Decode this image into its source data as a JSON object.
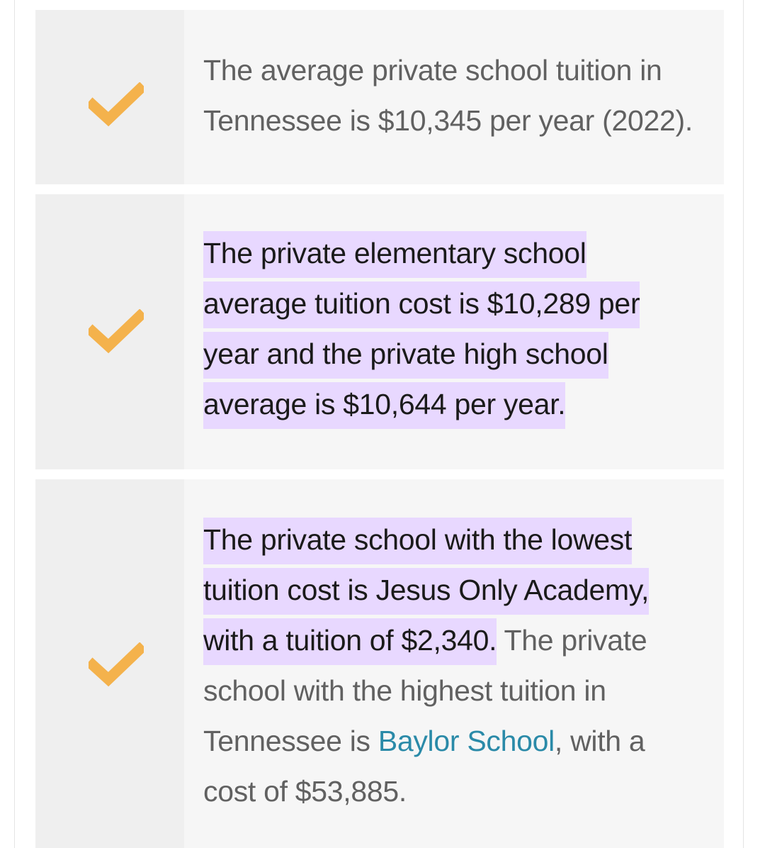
{
  "colors": {
    "check": "#f4b24c",
    "highlight": "#e8d8ff",
    "link": "#2a8aa8",
    "text": "#616161"
  },
  "items": [
    {
      "icon": "checkmark-icon",
      "text": "The average private school tuition in Tennessee is $10,345 per year (2022)."
    },
    {
      "icon": "checkmark-icon",
      "highlighted_text": "The private elementary school average tuition cost is $10,289 per year and the private high school average is $10,644 per year."
    },
    {
      "icon": "checkmark-icon",
      "highlighted_text": "The private school with the lowest tuition cost is Jesus Only Academy, with a tuition of $2,340.",
      "text_before_link": " The private school with the highest tuition in Tennessee is ",
      "link_text": "Baylor School",
      "text_after_link": ", with a cost of $53,885."
    }
  ]
}
